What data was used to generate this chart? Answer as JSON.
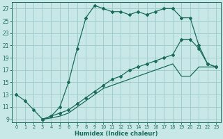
{
  "title": "",
  "xlabel": "Humidex (Indice chaleur)",
  "bg_color": "#c8e8e8",
  "grid_color": "#9dc8c8",
  "line_color": "#1a6b5a",
  "xlim": [
    -0.5,
    23.5
  ],
  "ylim": [
    8.5,
    28
  ],
  "xticks": [
    0,
    1,
    2,
    3,
    4,
    5,
    6,
    7,
    8,
    9,
    10,
    11,
    12,
    13,
    14,
    15,
    16,
    17,
    18,
    19,
    20,
    21,
    22,
    23
  ],
  "yticks": [
    9,
    11,
    13,
    15,
    17,
    19,
    21,
    23,
    25,
    27
  ],
  "line1_x": [
    0,
    1,
    2,
    3,
    4,
    5,
    6,
    7,
    8,
    9,
    10,
    11,
    12,
    13,
    14,
    15,
    16,
    17,
    18,
    19,
    20,
    21,
    22,
    23
  ],
  "line1_y": [
    13,
    12,
    10.5,
    9,
    9.5,
    11,
    15,
    20.5,
    25.5,
    27.5,
    27,
    26.5,
    26.5,
    26,
    26.5,
    26,
    26.5,
    27,
    27,
    25.5,
    25.5,
    21,
    18,
    17.5
  ],
  "line2_x": [
    3,
    4,
    5,
    6,
    7,
    8,
    9,
    10,
    11,
    12,
    13,
    14,
    15,
    16,
    17,
    18,
    19,
    20,
    21,
    22,
    23
  ],
  "line2_y": [
    9,
    9.5,
    10,
    10.5,
    11.5,
    12.5,
    13.5,
    14.5,
    15.5,
    16,
    17,
    17.5,
    18,
    18.5,
    19,
    19.5,
    22,
    22,
    20.5,
    18,
    17.5
  ],
  "line3_x": [
    3,
    4,
    5,
    6,
    7,
    8,
    9,
    10,
    11,
    12,
    13,
    14,
    15,
    16,
    17,
    18,
    19,
    20,
    21,
    22,
    23
  ],
  "line3_y": [
    9,
    9.2,
    9.5,
    10,
    11,
    12,
    13,
    14,
    14.5,
    15,
    15.5,
    16,
    16.5,
    17,
    17.5,
    18,
    16,
    16,
    17.5,
    17.5,
    17.5
  ]
}
